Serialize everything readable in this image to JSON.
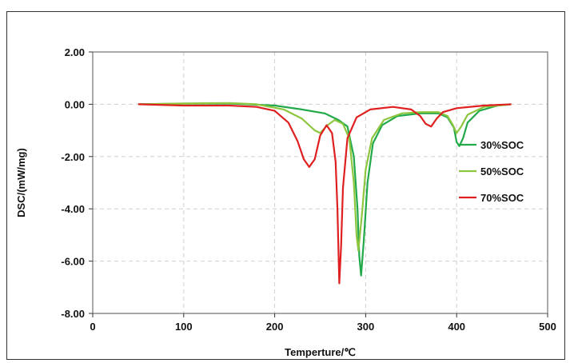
{
  "chart_data": {
    "type": "line",
    "xlabel": "Temperture/℃",
    "ylabel": "DSC/(mW/mg)",
    "xlim": [
      0,
      500
    ],
    "ylim": [
      -8,
      2
    ],
    "x_ticks": [
      "0",
      "100",
      "200",
      "300",
      "400",
      "500"
    ],
    "y_ticks": [
      "2.00",
      "0.00",
      "-2.00",
      "-4.00",
      "-6.00",
      "-8.00"
    ],
    "grid": true,
    "legend_position": "right",
    "series": [
      {
        "name": "30%SOC",
        "color": "#22aa4a",
        "points": [
          [
            50,
            0.0
          ],
          [
            100,
            0.02
          ],
          [
            150,
            0.03
          ],
          [
            200,
            -0.05
          ],
          [
            230,
            -0.2
          ],
          [
            255,
            -0.35
          ],
          [
            270,
            -0.6
          ],
          [
            280,
            -0.85
          ],
          [
            287,
            -2.0
          ],
          [
            291,
            -4.0
          ],
          [
            293,
            -5.8
          ],
          [
            295,
            -6.55
          ],
          [
            298,
            -5.2
          ],
          [
            302,
            -3.0
          ],
          [
            308,
            -1.5
          ],
          [
            318,
            -0.8
          ],
          [
            335,
            -0.45
          ],
          [
            360,
            -0.35
          ],
          [
            380,
            -0.35
          ],
          [
            390,
            -0.5
          ],
          [
            397,
            -0.9
          ],
          [
            400,
            -1.45
          ],
          [
            403,
            -1.6
          ],
          [
            407,
            -1.3
          ],
          [
            412,
            -0.7
          ],
          [
            425,
            -0.25
          ],
          [
            445,
            -0.05
          ],
          [
            460,
            0.0
          ]
        ]
      },
      {
        "name": "50%SOC",
        "color": "#8ec63f",
        "points": [
          [
            50,
            0.0
          ],
          [
            100,
            0.03
          ],
          [
            150,
            0.05
          ],
          [
            180,
            0.0
          ],
          [
            210,
            -0.2
          ],
          [
            230,
            -0.55
          ],
          [
            244,
            -1.0
          ],
          [
            250,
            -1.1
          ],
          [
            258,
            -0.8
          ],
          [
            266,
            -0.6
          ],
          [
            275,
            -0.75
          ],
          [
            282,
            -1.3
          ],
          [
            287,
            -3.0
          ],
          [
            290,
            -5.0
          ],
          [
            292,
            -5.6
          ],
          [
            296,
            -4.2
          ],
          [
            300,
            -2.5
          ],
          [
            307,
            -1.3
          ],
          [
            320,
            -0.6
          ],
          [
            340,
            -0.35
          ],
          [
            360,
            -0.3
          ],
          [
            380,
            -0.3
          ],
          [
            390,
            -0.45
          ],
          [
            396,
            -0.8
          ],
          [
            400,
            -1.1
          ],
          [
            405,
            -0.85
          ],
          [
            412,
            -0.4
          ],
          [
            430,
            -0.1
          ],
          [
            460,
            0.0
          ]
        ]
      },
      {
        "name": "70%SOC",
        "color": "#e02020",
        "points": [
          [
            50,
            0.0
          ],
          [
            100,
            -0.05
          ],
          [
            150,
            -0.05
          ],
          [
            180,
            -0.1
          ],
          [
            200,
            -0.25
          ],
          [
            215,
            -0.7
          ],
          [
            225,
            -1.4
          ],
          [
            232,
            -2.1
          ],
          [
            238,
            -2.4
          ],
          [
            244,
            -2.1
          ],
          [
            250,
            -1.2
          ],
          [
            257,
            -0.8
          ],
          [
            263,
            -1.1
          ],
          [
            267,
            -2.2
          ],
          [
            269,
            -4.0
          ],
          [
            270,
            -5.5
          ],
          [
            271,
            -6.85
          ],
          [
            273,
            -5.4
          ],
          [
            275,
            -3.2
          ],
          [
            280,
            -1.3
          ],
          [
            290,
            -0.5
          ],
          [
            305,
            -0.2
          ],
          [
            330,
            -0.1
          ],
          [
            350,
            -0.2
          ],
          [
            360,
            -0.45
          ],
          [
            366,
            -0.75
          ],
          [
            372,
            -0.85
          ],
          [
            378,
            -0.55
          ],
          [
            385,
            -0.3
          ],
          [
            400,
            -0.15
          ],
          [
            430,
            -0.05
          ],
          [
            460,
            0.0
          ]
        ]
      }
    ]
  }
}
